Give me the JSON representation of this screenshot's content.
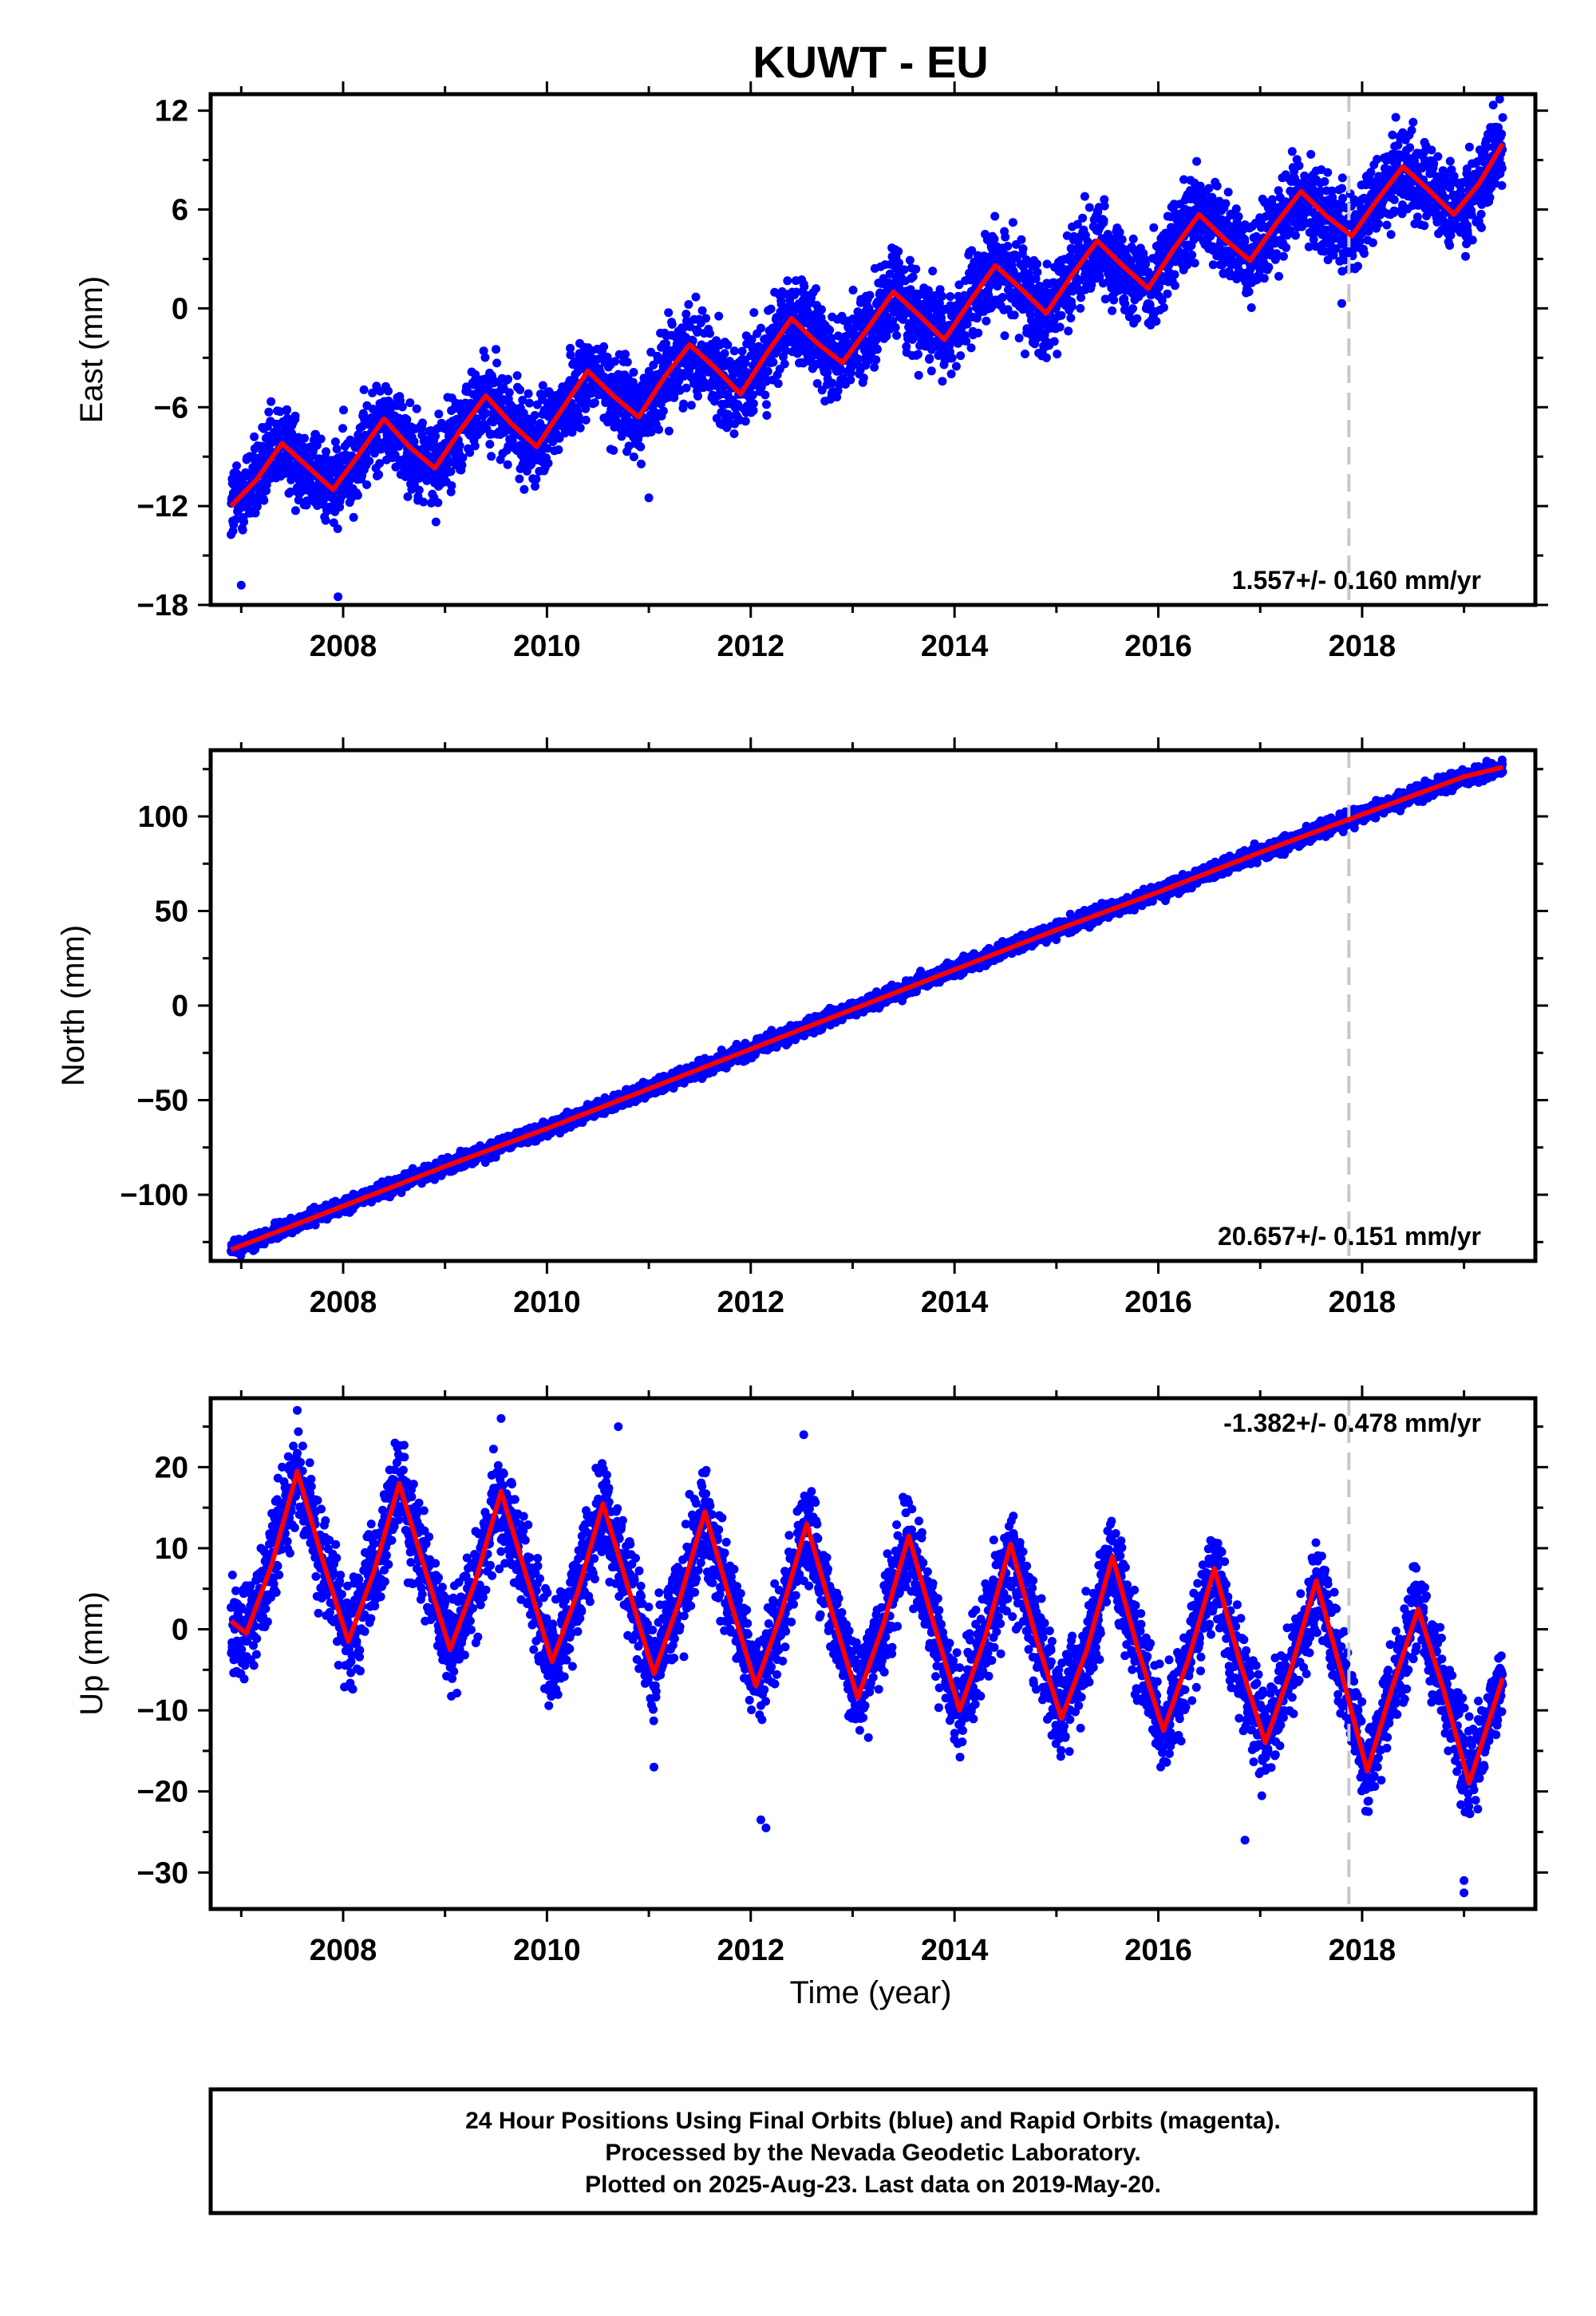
{
  "title": "KUWT - EU",
  "footer": {
    "lines": [
      "24 Hour Positions Using Final Orbits (blue) and Rapid Orbits (magenta).",
      "Processed by the Nevada Geodetic Laboratory.",
      "Plotted on 2025-Aug-23. Last data on 2019-May-20."
    ]
  },
  "colors": {
    "final_orbits": "#0000ff",
    "rapid_orbits": "#ff00ff",
    "model_fit": "#ff0000",
    "equipment_change_line": "#c8c8c8",
    "frame": "#000000"
  },
  "chart_data": [
    {
      "type": "scatter",
      "component": "East",
      "ylabel": "East (mm)",
      "xlabel": "",
      "xlim": [
        2006.7,
        2019.7
      ],
      "ylim": [
        -18,
        13
      ],
      "xticks": [
        2008,
        2010,
        2012,
        2014,
        2016,
        2018
      ],
      "yticks": [
        -18,
        -12,
        -6,
        0,
        6,
        12
      ],
      "grid": false,
      "rate_text": "1.557+/- 0.160 mm/yr",
      "rate_position": "bottom-right",
      "data_start": 2006.9,
      "data_end": 2019.38,
      "equipment_change": 2017.87,
      "model": {
        "name": "fit",
        "x": [
          2006.9,
          2007.15,
          2007.4,
          2007.65,
          2007.9,
          2008.15,
          2008.4,
          2008.65,
          2008.9,
          2009.15,
          2009.4,
          2009.65,
          2009.9,
          2010.15,
          2010.4,
          2010.65,
          2010.9,
          2011.15,
          2011.4,
          2011.65,
          2011.9,
          2012.15,
          2012.4,
          2012.65,
          2012.9,
          2013.15,
          2013.4,
          2013.65,
          2013.9,
          2014.15,
          2014.4,
          2014.65,
          2014.9,
          2015.15,
          2015.4,
          2015.65,
          2015.9,
          2016.15,
          2016.4,
          2016.65,
          2016.9,
          2017.15,
          2017.4,
          2017.65,
          2017.9,
          2018.15,
          2018.4,
          2018.65,
          2018.9,
          2019.15,
          2019.38
        ],
        "y": [
          -12.0,
          -10.4,
          -8.2,
          -9.6,
          -11.0,
          -8.9,
          -6.7,
          -8.4,
          -9.7,
          -7.4,
          -5.3,
          -7.0,
          -8.4,
          -6.1,
          -3.8,
          -5.3,
          -6.6,
          -4.2,
          -2.2,
          -3.6,
          -5.2,
          -2.8,
          -0.6,
          -2.1,
          -3.3,
          -1.2,
          1.0,
          -0.4,
          -1.9,
          0.4,
          2.6,
          1.2,
          -0.3,
          2.0,
          4.1,
          2.6,
          1.2,
          3.6,
          5.7,
          4.2,
          2.9,
          5.1,
          7.1,
          5.6,
          4.4,
          6.6,
          8.6,
          7.2,
          5.7,
          7.6,
          10.0
        ]
      },
      "scatter_model": {
        "noise_mm": 1.3,
        "outliers": [
          [
            2007.95,
            -17.5
          ],
          [
            2007.0,
            -16.8
          ],
          [
            2011.0,
            -11.5
          ],
          [
            2011.7,
            -7.0
          ],
          [
            2013.1,
            -4.5
          ],
          [
            2014.3,
            4.5
          ],
          [
            2017.8,
            0.3
          ],
          [
            2018.5,
            11.3
          ],
          [
            2019.35,
            12.7
          ]
        ]
      }
    },
    {
      "type": "scatter",
      "component": "North",
      "ylabel": "North (mm)",
      "xlabel": "",
      "xlim": [
        2006.7,
        2019.7
      ],
      "ylim": [
        -135,
        135
      ],
      "xticks": [
        2008,
        2010,
        2012,
        2014,
        2016,
        2018
      ],
      "yticks": [
        -100,
        -50,
        0,
        50,
        100
      ],
      "grid": false,
      "rate_text": "20.657+/- 0.151 mm/yr",
      "rate_position": "bottom-right",
      "data_start": 2006.9,
      "data_end": 2019.38,
      "equipment_change": 2017.87,
      "model": {
        "name": "fit",
        "x": [
          2006.9,
          2008.0,
          2009.0,
          2010.0,
          2011.0,
          2012.0,
          2013.0,
          2014.0,
          2015.0,
          2016.0,
          2017.0,
          2018.0,
          2019.0,
          2019.38
        ],
        "y": [
          -129,
          -106,
          -85,
          -65,
          -44,
          -23,
          -2,
          19,
          40,
          60,
          81,
          101,
          121,
          126
        ]
      },
      "scatter_model": {
        "noise_mm": 2.0,
        "outliers": []
      }
    },
    {
      "type": "scatter",
      "component": "Up",
      "ylabel": "Up (mm)",
      "xlabel": "Time (year)",
      "xlim": [
        2006.7,
        2019.7
      ],
      "ylim": [
        -34.5,
        28.5
      ],
      "xticks": [
        2008,
        2010,
        2012,
        2014,
        2016,
        2018
      ],
      "yticks": [
        -30,
        -20,
        -10,
        0,
        10,
        20
      ],
      "grid": false,
      "rate_text": "-1.382+/- 0.478 mm/yr",
      "rate_position": "top-right",
      "data_start": 2006.9,
      "data_end": 2019.38,
      "equipment_change": 2017.87,
      "model": {
        "name": "fit",
        "x": [
          2006.9,
          2007.05,
          2007.3,
          2007.55,
          2007.8,
          2008.05,
          2008.3,
          2008.55,
          2008.8,
          2009.05,
          2009.3,
          2009.55,
          2009.8,
          2010.05,
          2010.3,
          2010.55,
          2010.8,
          2011.05,
          2011.3,
          2011.55,
          2011.8,
          2012.05,
          2012.3,
          2012.55,
          2012.8,
          2013.05,
          2013.3,
          2013.55,
          2013.8,
          2014.05,
          2014.3,
          2014.55,
          2014.8,
          2015.05,
          2015.3,
          2015.55,
          2015.8,
          2016.05,
          2016.3,
          2016.55,
          2016.8,
          2017.05,
          2017.3,
          2017.55,
          2017.8,
          2018.05,
          2018.3,
          2018.55,
          2018.8,
          2019.05,
          2019.38
        ],
        "y": [
          1.0,
          -0.5,
          8.0,
          19.5,
          8.5,
          -1.5,
          7.0,
          18.0,
          7.5,
          -2.5,
          6.0,
          17.0,
          6.5,
          -4.0,
          4.5,
          15.5,
          5.0,
          -5.5,
          3.5,
          14.5,
          3.5,
          -7.0,
          2.0,
          13.0,
          2.0,
          -8.5,
          0.5,
          11.5,
          0.5,
          -10.0,
          -1.0,
          10.5,
          -1.0,
          -11.0,
          -2.5,
          9.0,
          -2.5,
          -12.5,
          -3.5,
          7.5,
          -4.0,
          -14.0,
          -5.0,
          6.0,
          -5.5,
          -17.5,
          -7.0,
          2.5,
          -7.5,
          -19.0,
          -6.0
        ]
      },
      "scatter_model": {
        "noise_mm": 3.0,
        "outliers": [
          [
            2010.7,
            25.0
          ],
          [
            2011.05,
            -17.0
          ],
          [
            2012.1,
            -23.5
          ],
          [
            2012.15,
            -24.5
          ],
          [
            2016.85,
            -26.0
          ],
          [
            2019.0,
            -31.0
          ],
          [
            2019.0,
            -32.5
          ],
          [
            2012.52,
            24.0
          ],
          [
            2009.55,
            26.0
          ],
          [
            2007.55,
            27.0
          ]
        ]
      }
    }
  ]
}
